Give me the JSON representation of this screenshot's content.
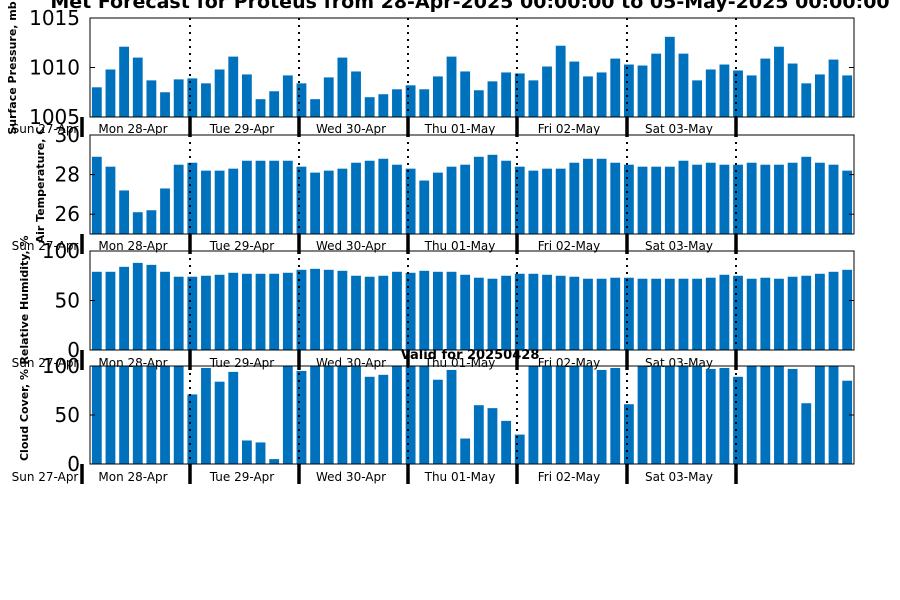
{
  "title": "Met Forecast for Proteus from 28-Apr-2025 00:00:00 to 05-May-2025 00:00:00",
  "subtitle": "Valid for 20250428",
  "chart_data": [
    {
      "type": "bar",
      "ylabel": "Surface Pressure, mb",
      "ylim": [
        1005,
        1015
      ],
      "yticks": [
        "1005",
        "1010",
        "1015"
      ],
      "x_day_labels": [
        "Sun 27-Apr",
        "Mon 28-Apr",
        "Tue 29-Apr",
        "Wed 30-Apr",
        "Thu 01-May",
        "Fri 02-May",
        "Sat 03-May"
      ],
      "values": [
        1008.0,
        1009.8,
        1012.1,
        1011.0,
        1008.7,
        1007.5,
        1008.8,
        1008.9,
        1008.4,
        1009.8,
        1011.1,
        1009.3,
        1006.8,
        1007.6,
        1009.2,
        1008.4,
        1006.8,
        1009.0,
        1011.0,
        1009.6,
        1007.0,
        1007.3,
        1007.8,
        1008.2,
        1007.8,
        1009.1,
        1011.1,
        1009.6,
        1007.7,
        1008.6,
        1009.5,
        1009.4,
        1008.7,
        1010.1,
        1012.2,
        1010.6,
        1009.1,
        1009.5,
        1010.9,
        1010.3,
        1010.2,
        1011.4,
        1013.1,
        1011.4,
        1008.7,
        1009.8,
        1010.3,
        1009.7,
        1009.2,
        1010.9,
        1012.1,
        1010.4,
        1008.4,
        1009.3,
        1010.8,
        1009.2
      ]
    },
    {
      "type": "bar",
      "ylabel": "Air Temperature, C",
      "ylim": [
        25,
        30
      ],
      "yticks": [
        "26",
        "28",
        "30"
      ],
      "x_day_labels": [
        "Sun 27-Apr",
        "Mon 28-Apr",
        "Tue 29-Apr",
        "Wed 30-Apr",
        "Thu 01-May",
        "Fri 02-May",
        "Sat 03-May"
      ],
      "values": [
        28.9,
        28.4,
        27.2,
        26.1,
        26.2,
        27.3,
        28.5,
        28.6,
        28.2,
        28.2,
        28.3,
        28.7,
        28.7,
        28.7,
        28.7,
        28.4,
        28.1,
        28.2,
        28.3,
        28.6,
        28.7,
        28.8,
        28.5,
        28.3,
        27.7,
        28.1,
        28.4,
        28.5,
        28.9,
        29.0,
        28.7,
        28.4,
        28.2,
        28.3,
        28.3,
        28.6,
        28.8,
        28.8,
        28.6,
        28.5,
        28.4,
        28.4,
        28.4,
        28.7,
        28.5,
        28.6,
        28.5,
        28.5,
        28.6,
        28.5,
        28.5,
        28.6,
        28.9,
        28.6,
        28.5,
        28.2
      ]
    },
    {
      "type": "bar",
      "ylabel": "Relative Humidity, %",
      "ylim": [
        0,
        100
      ],
      "yticks": [
        "0",
        "50",
        "100"
      ],
      "x_day_labels": [
        "Sun 27-Apr",
        "Mon 28-Apr",
        "Tue 29-Apr",
        "Wed 30-Apr",
        "Thu 01-May",
        "Fri 02-May",
        "Sat 03-May"
      ],
      "values": [
        79,
        79,
        84,
        88,
        86,
        79,
        74,
        74,
        75,
        76,
        78,
        77,
        77,
        77,
        78,
        81,
        82,
        81,
        80,
        75,
        74,
        75,
        79,
        78,
        80,
        79,
        79,
        76,
        73,
        72,
        75,
        77,
        77,
        76,
        75,
        74,
        72,
        72,
        73,
        73,
        72,
        72,
        72,
        72,
        72,
        73,
        76,
        75,
        72,
        73,
        72,
        74,
        75,
        77,
        79,
        81
      ]
    },
    {
      "type": "bar",
      "ylabel": "Cloud Cover, %",
      "ylim": [
        0,
        100
      ],
      "yticks": [
        "0",
        "50",
        "100"
      ],
      "x_day_labels": [
        "Sun 27-Apr",
        "Mon 28-Apr",
        "Tue 29-Apr",
        "Wed 30-Apr",
        "Thu 01-May",
        "Fri 02-May",
        "Sat 03-May"
      ],
      "values": [
        100,
        100,
        100,
        100,
        100,
        100,
        100,
        71,
        98,
        84,
        94,
        24,
        22,
        5,
        100,
        95,
        100,
        100,
        100,
        100,
        89,
        91,
        100,
        100,
        100,
        86,
        96,
        26,
        60,
        57,
        44,
        30,
        100,
        100,
        100,
        100,
        100,
        96,
        98,
        61,
        100,
        100,
        100,
        100,
        100,
        97,
        98,
        89,
        100,
        100,
        100,
        97,
        62,
        100,
        100,
        85
      ]
    }
  ]
}
